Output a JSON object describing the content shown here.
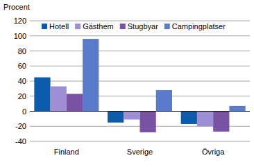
{
  "chart_data": {
    "type": "bar",
    "y_label": "Procent",
    "categories": [
      "Finland",
      "Sverige",
      "Övriga"
    ],
    "series": [
      {
        "name": "Hotell",
        "color": "#0d5cab",
        "values": [
          45,
          -15,
          -17
        ]
      },
      {
        "name": "Gästhem",
        "color": "#9c8fd3",
        "values": [
          33,
          -11,
          -20
        ]
      },
      {
        "name": "Stugbyar",
        "color": "#7a52a4",
        "values": [
          23,
          -28,
          -27
        ]
      },
      {
        "name": "Campingplatser",
        "color": "#5a7bcb",
        "values": [
          96,
          28,
          7
        ]
      }
    ],
    "ylim": [
      -40,
      120
    ],
    "yticks": [
      -40,
      -20,
      0,
      20,
      40,
      60,
      80,
      100,
      120
    ],
    "grid": true,
    "legend": "top"
  }
}
